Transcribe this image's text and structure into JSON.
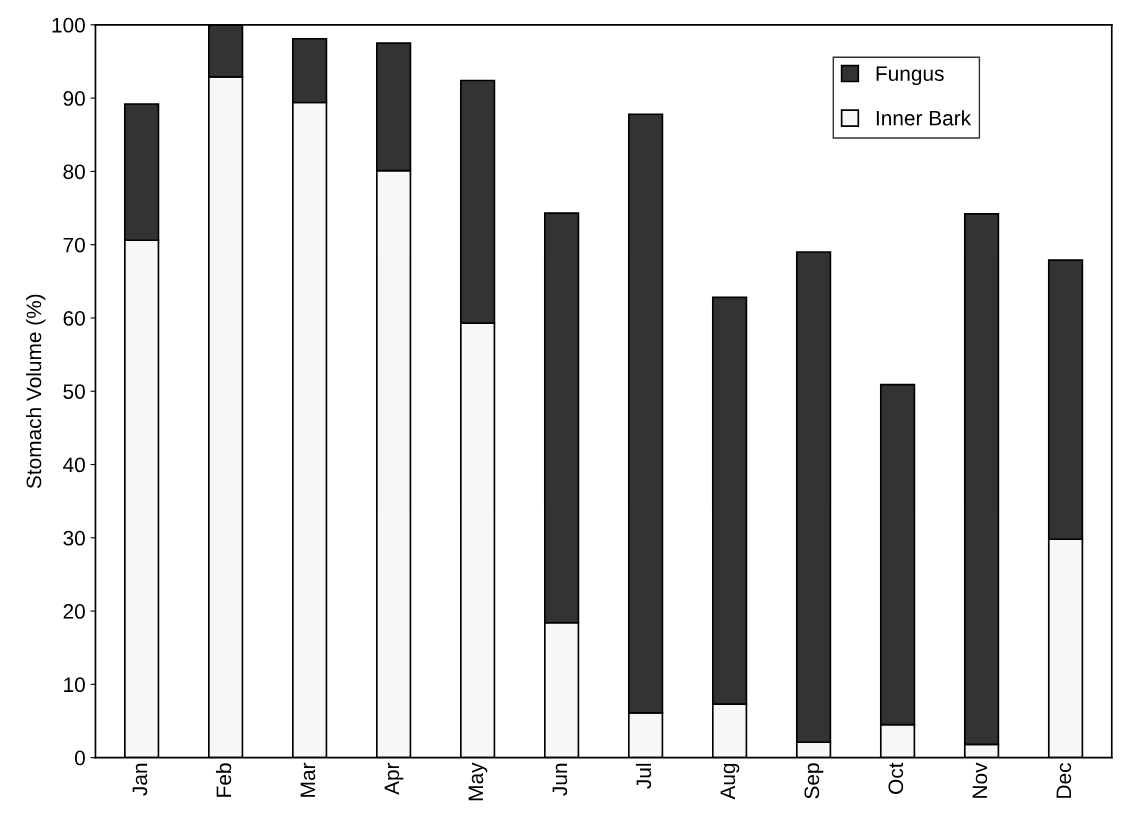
{
  "chart_data": {
    "type": "bar",
    "stacked": true,
    "ylabel": "Stomach Volume (%)",
    "categories": [
      "Jan",
      "Feb",
      "Mar",
      "Apr",
      "May",
      "Jun",
      "Jul",
      "Aug",
      "Sep",
      "Oct",
      "Nov",
      "Dec"
    ],
    "series": [
      {
        "name": "Inner Bark",
        "color": "#f7f7f7",
        "values": [
          70.6,
          92.9,
          89.4,
          80.1,
          59.3,
          18.4,
          6.1,
          7.3,
          2.1,
          4.5,
          1.8,
          29.8
        ]
      },
      {
        "name": "Fungus",
        "color": "#333333",
        "values": [
          18.6,
          7.1,
          8.7,
          17.4,
          33.1,
          55.9,
          81.7,
          55.5,
          66.9,
          46.4,
          72.4,
          38.1
        ]
      }
    ],
    "ylim": [
      0,
      100
    ],
    "yticks": [
      0,
      10,
      20,
      30,
      40,
      50,
      60,
      70,
      80,
      90,
      100
    ],
    "grid": false,
    "legend": "top right"
  }
}
